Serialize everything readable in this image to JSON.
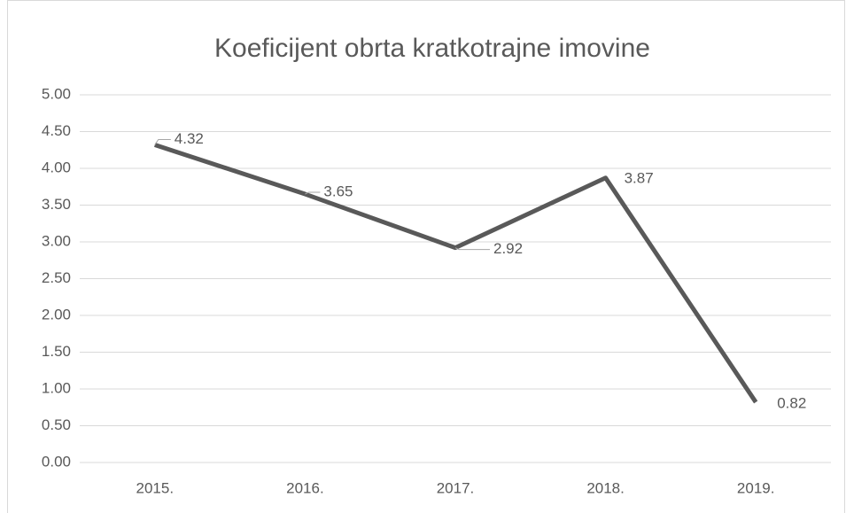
{
  "chart_data": {
    "type": "line",
    "title": "Koeficijent obrta kratkotrajne imovine",
    "categories": [
      "2015.",
      "2016.",
      "2017.",
      "2018.",
      "2019."
    ],
    "series": [
      {
        "color": "#595959",
        "values": [
          4.32,
          3.65,
          2.92,
          3.87,
          0.82
        ]
      }
    ],
    "ylim": [
      0,
      5
    ],
    "yticks": [
      {
        "value": 0,
        "label": "0.00"
      },
      {
        "value": 0.5,
        "label": "0.50"
      },
      {
        "value": 1,
        "label": "1.00"
      },
      {
        "value": 1.5,
        "label": "1.50"
      },
      {
        "value": 2,
        "label": "2.00"
      },
      {
        "value": 2.5,
        "label": "2.50"
      },
      {
        "value": 3,
        "label": "3.00"
      },
      {
        "value": 3.5,
        "label": "3.50"
      },
      {
        "value": 4,
        "label": "4.00"
      },
      {
        "value": 4.5,
        "label": "4.50"
      },
      {
        "value": 5,
        "label": "5.00"
      }
    ],
    "grid": true
  }
}
